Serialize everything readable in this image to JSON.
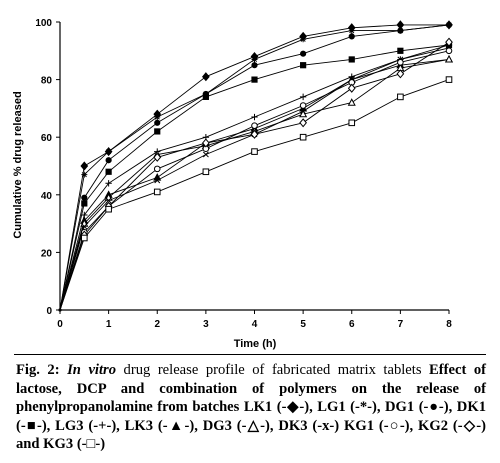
{
  "chart_data": {
    "type": "line",
    "title": "",
    "xlabel": "Time (h)",
    "ylabel": "Cumulative % drug released",
    "xlim": [
      0,
      8
    ],
    "ylim": [
      0,
      100
    ],
    "x_ticks": [
      "0",
      "1",
      "2",
      "3",
      "4",
      "5",
      "6",
      "7",
      "8"
    ],
    "y_ticks": [
      "0",
      "20",
      "40",
      "60",
      "80",
      "100"
    ],
    "grid": false,
    "legend": "none (described in caption)",
    "x": [
      0,
      0.5,
      1,
      2,
      3,
      4,
      5,
      6,
      7,
      8
    ],
    "series": [
      {
        "name": "LK1",
        "marker": "diamond-filled",
        "values": [
          0,
          50,
          55,
          68,
          81,
          88,
          95,
          98,
          99,
          99
        ]
      },
      {
        "name": "LG1",
        "marker": "star",
        "values": [
          0,
          47,
          55,
          67,
          75,
          87,
          94,
          97,
          97,
          99
        ]
      },
      {
        "name": "DG1",
        "marker": "circle-filled",
        "values": [
          0,
          39,
          52,
          65,
          75,
          85,
          89,
          95,
          97,
          99
        ]
      },
      {
        "name": "DK1",
        "marker": "square-filled",
        "values": [
          0,
          37,
          48,
          62,
          74,
          80,
          85,
          87,
          90,
          92
        ]
      },
      {
        "name": "LG3",
        "marker": "plus",
        "values": [
          0,
          33,
          44,
          55,
          60,
          67,
          74,
          81,
          87,
          92
        ]
      },
      {
        "name": "LK3",
        "marker": "triangle-filled",
        "values": [
          0,
          31,
          40,
          46,
          58,
          63,
          70,
          80,
          85,
          87
        ]
      },
      {
        "name": "DG3",
        "marker": "triangle-open",
        "values": [
          0,
          30,
          39,
          54,
          57,
          62,
          68,
          72,
          84,
          87
        ]
      },
      {
        "name": "DK3",
        "marker": "x",
        "values": [
          0,
          29,
          38,
          45,
          54,
          61,
          69,
          80,
          87,
          91
        ]
      },
      {
        "name": "KG1",
        "marker": "circle-open",
        "values": [
          0,
          27,
          36,
          49,
          56,
          64,
          71,
          79,
          86,
          90
        ]
      },
      {
        "name": "KG2",
        "marker": "diamond-open",
        "values": [
          0,
          26,
          36,
          53,
          58,
          61,
          65,
          77,
          82,
          93
        ]
      },
      {
        "name": "KG3",
        "marker": "square-open",
        "values": [
          0,
          25,
          35,
          41,
          48,
          55,
          60,
          65,
          74,
          80
        ]
      }
    ]
  },
  "caption": {
    "lead": "Fig. 2: In vitro drug release profile of fabricated matrix tablets",
    "fig_label": "Fig. 2:",
    "italic_phrase": "In vitro",
    "rest_first_line": "drug release profile of fabricated matrix tablets",
    "body": "Effect of lactose, DCP and combination of polymers on the release of phenylpropanolamine from batches LK1 (-◆-), LG1 (-*-), DG1 (-●-), DK1 (-■-), LG3 (-+-), LK3 (-▲-), DG3 (-△-), DK3 (-x-) KG1 (-○-), KG2 (-◇-) and KG3 (-□-)"
  }
}
